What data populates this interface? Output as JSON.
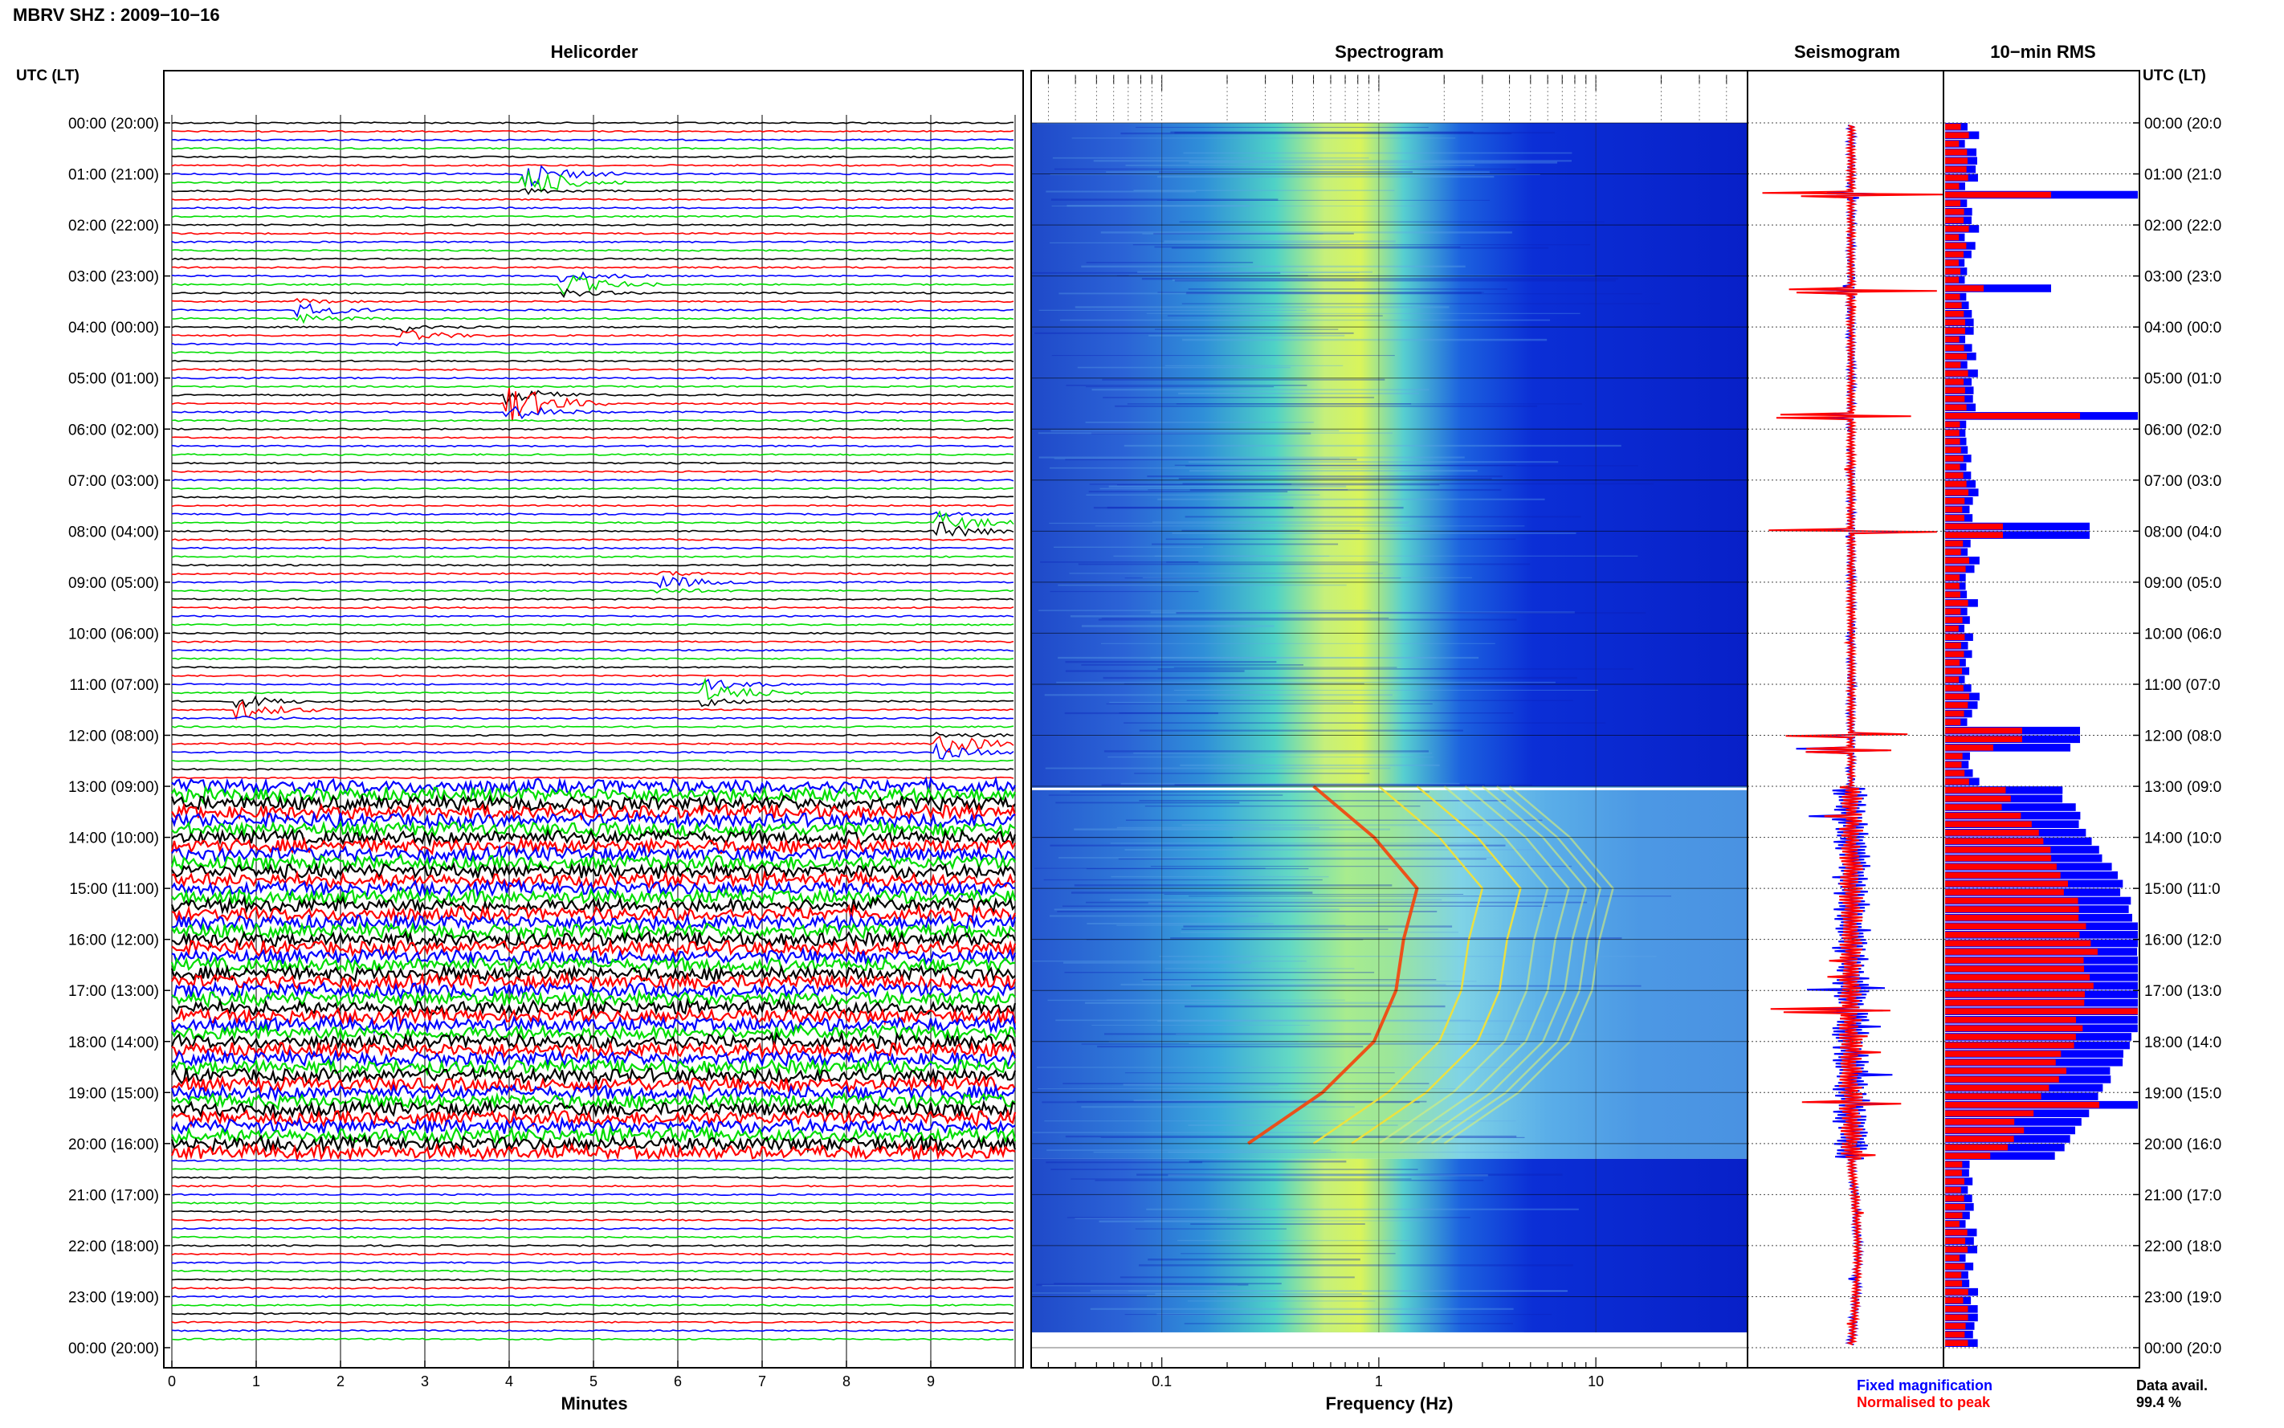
{
  "header": {
    "station_title": "MBRV SHZ : 2009−10−16",
    "utc_lt_label": "UTC (LT)"
  },
  "panels": {
    "helicorder": "Helicorder",
    "spectrogram": "Spectrogram",
    "seismogram": "Seismogram",
    "rms": "10−min RMS"
  },
  "footer": {
    "fixed_magnification": "Fixed magnification",
    "normalised_to_peak": "Normalised to peak",
    "data_avail_label": "Data avail.",
    "data_avail_value": "99.4 %"
  },
  "colors": {
    "trace_cycle": [
      "#000000",
      "#ff0000",
      "#0000ff",
      "#00dd00"
    ],
    "fixed": "#0000ff",
    "normalised": "#ff0000"
  },
  "chart_data": [
    {
      "type": "line",
      "name": "helicorder",
      "title": "Helicorder",
      "xlabel": "Minutes",
      "x_ticks": [
        "0",
        "1",
        "2",
        "3",
        "4",
        "5",
        "6",
        "7",
        "8",
        "9"
      ],
      "xlim": [
        0,
        10
      ],
      "row_labels": [
        "00:00 (20:00)",
        "01:00 (21:00)",
        "02:00 (22:00)",
        "03:00 (23:00)",
        "04:00 (00:00)",
        "05:00 (01:00)",
        "06:00 (02:00)",
        "07:00 (03:00)",
        "08:00 (04:00)",
        "09:00 (05:00)",
        "10:00 (06:00)",
        "11:00 (07:00)",
        "12:00 (08:00)",
        "13:00 (09:00)",
        "14:00 (10:00)",
        "15:00 (11:00)",
        "16:00 (12:00)",
        "17:00 (13:00)",
        "18:00 (14:00)",
        "19:00 (15:00)",
        "20:00 (16:00)",
        "21:00 (17:00)",
        "22:00 (18:00)",
        "23:00 (19:00)",
        "00:00 (20:00)"
      ],
      "right_row_labels": [
        "00:00 (20:0",
        "01:00 (21:0",
        "02:00 (22:0",
        "03:00 (23:0",
        "04:00 (00:0",
        "05:00 (01:0",
        "06:00 (02:0",
        "07:00 (03:0",
        "08:00 (04:0",
        "09:00 (05:0",
        "10:00 (06:0",
        "11:00 (07:0",
        "12:00 (08:0",
        "13:00 (09:0",
        "14:00 (10:0",
        "15:00 (11:0",
        "16:00 (12:0",
        "17:00 (13:0",
        "18:00 (14:0",
        "19:00 (15:0",
        "20:00 (16:0",
        "21:00 (17:0",
        "22:00 (18:0",
        "23:00 (19:0",
        "00:00 (20:0"
      ],
      "lines_per_hour": 6,
      "line_minutes": 10,
      "noisy_period_hours": [
        13.0,
        20.2
      ],
      "events": [
        {
          "hour": 1.1,
          "minute": 4.2,
          "amp": 3
        },
        {
          "hour": 3.15,
          "minute": 4.6,
          "amp": 1.8
        },
        {
          "hour": 3.7,
          "minute": 1.5,
          "amp": 1.2
        },
        {
          "hour": 4.1,
          "minute": 2.7,
          "amp": 1.2
        },
        {
          "hour": 5.5,
          "minute": 4.0,
          "amp": 3
        },
        {
          "hour": 7.9,
          "minute": 9.1,
          "amp": 2
        },
        {
          "hour": 9.0,
          "minute": 5.8,
          "amp": 1
        },
        {
          "hour": 11.15,
          "minute": 6.3,
          "amp": 2
        },
        {
          "hour": 11.45,
          "minute": 0.8,
          "amp": 1.5
        },
        {
          "hour": 12.2,
          "minute": 9.1,
          "amp": 2
        }
      ]
    },
    {
      "type": "heatmap",
      "name": "spectrogram",
      "title": "Spectrogram",
      "xlabel": "Frequency (Hz)",
      "x_scale": "log",
      "xlim": [
        0.025,
        50
      ],
      "x_ticks": [
        "0.1",
        "1",
        "10"
      ],
      "y_hours": [
        0,
        24
      ],
      "tremor_hours": [
        13.0,
        20.3
      ],
      "background_peak_hz": 0.8,
      "harmonic_fundamental_track": [
        [
          13.0,
          0.5
        ],
        [
          14.0,
          0.95
        ],
        [
          15.0,
          1.5
        ],
        [
          16.0,
          1.3
        ],
        [
          17.0,
          1.2
        ],
        [
          18.0,
          0.95
        ],
        [
          19.0,
          0.55
        ],
        [
          20.0,
          0.25
        ]
      ]
    },
    {
      "type": "line",
      "name": "seismogram",
      "title": "Seismogram",
      "series": [
        {
          "name": "Fixed magnification",
          "color": "#0000ff"
        },
        {
          "name": "Normalised to peak",
          "color": "#ff0000"
        }
      ]
    },
    {
      "type": "bar",
      "name": "rms",
      "title": "10−min RMS",
      "orientation": "horizontal",
      "bin_minutes": 10,
      "series": [
        {
          "name": "Fixed magnification",
          "color": "#0000ff"
        },
        {
          "name": "Normalised to peak",
          "color": "#ff0000"
        }
      ],
      "tremor_hours": [
        13.0,
        20.3
      ],
      "spikes": [
        {
          "hour": 1.4,
          "fixed": 1.0,
          "normalised": 0.55
        },
        {
          "hour": 3.3,
          "fixed": 0.55,
          "normalised": 0.2
        },
        {
          "hour": 5.75,
          "fixed": 1.0,
          "normalised": 0.7
        },
        {
          "hour": 8.0,
          "fixed": 0.75,
          "normalised": 0.3
        },
        {
          "hour": 12.0,
          "fixed": 0.7,
          "normalised": 0.4
        },
        {
          "hour": 12.3,
          "fixed": 0.65,
          "normalised": 0.25
        },
        {
          "hour": 17.4,
          "fixed": 1.0,
          "normalised": 1.0
        },
        {
          "hour": 19.2,
          "fixed": 1.0,
          "normalised": 0.8
        }
      ]
    }
  ]
}
